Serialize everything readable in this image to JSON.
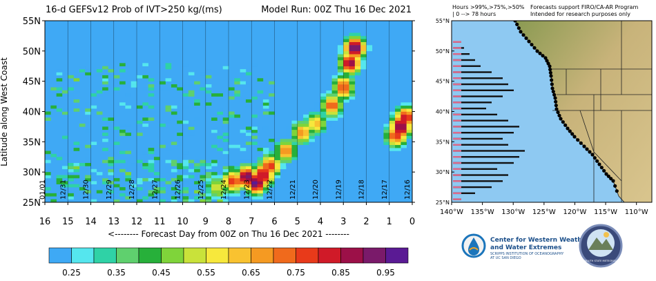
{
  "chart_data": [
    {
      "type": "heatmap",
      "title": "16-d GEFSv12 Prob of IVT>250 kg/(ms)",
      "model_run": "Model Run: 00Z Thu 16 Dec 2021",
      "xlabel": "<-------- Forecast Day from 00Z on Thu 16 Dec 2021 --------",
      "ylabel": "Latitude along West Coast",
      "xlim": [
        16,
        0
      ],
      "ylim": [
        25,
        55
      ],
      "x_ticks": [
        "16",
        "15",
        "14",
        "13",
        "12",
        "11",
        "10",
        "9",
        "8",
        "7",
        "6",
        "5",
        "4",
        "3",
        "2",
        "1",
        "0"
      ],
      "y_ticks": [
        "25N",
        "30N",
        "35N",
        "40N",
        "45N",
        "50N",
        "55N"
      ],
      "date_labels": [
        {
          "label": "01/01",
          "day": 15.9
        },
        {
          "label": "12/31",
          "day": 15.0
        },
        {
          "label": "12/30",
          "day": 14.0
        },
        {
          "label": "12/29",
          "day": 13.0
        },
        {
          "label": "12/28",
          "day": 12.0
        },
        {
          "label": "12/27",
          "day": 11.0
        },
        {
          "label": "12/26",
          "day": 10.0
        },
        {
          "label": "12/25",
          "day": 9.0
        },
        {
          "label": "12/24",
          "day": 8.0
        },
        {
          "label": "12/23",
          "day": 7.0
        },
        {
          "label": "12/22",
          "day": 6.0
        },
        {
          "label": "12/21",
          "day": 5.0
        },
        {
          "label": "12/20",
          "day": 4.0
        },
        {
          "label": "12/19",
          "day": 3.0
        },
        {
          "label": "12/18",
          "day": 2.0
        },
        {
          "label": "12/17",
          "day": 1.0
        },
        {
          "label": "12/16",
          "day": 0.0
        }
      ],
      "background_color": "#3fa9f5",
      "colorbar": {
        "tick_labels": [
          "0.25",
          "0.35",
          "0.45",
          "0.55",
          "0.65",
          "0.75",
          "0.85",
          "0.95"
        ],
        "colors": [
          "#3ea9f5",
          "#55e6ee",
          "#2fd2a6",
          "#5fd06e",
          "#27b03a",
          "#7fd43a",
          "#c9e23a",
          "#f7e83c",
          "#f9c230",
          "#f59a22",
          "#f06a1c",
          "#e83a1a",
          "#d01a28",
          "#9c1048",
          "#7a1a6a",
          "#5a1a94"
        ]
      },
      "features": [
        {
          "name": "main-ar",
          "points": [
            [
              8.5,
              27.5,
              0.55
            ],
            [
              7.8,
              28.5,
              0.8
            ],
            [
              7.2,
              29.2,
              0.95
            ],
            [
              6.8,
              28.2,
              0.97
            ],
            [
              6.5,
              29.5,
              0.9
            ],
            [
              6.2,
              31.0,
              0.8
            ],
            [
              5.5,
              33.5,
              0.72
            ],
            [
              4.8,
              36.5,
              0.7
            ],
            [
              4.2,
              38.0,
              0.65
            ],
            [
              3.5,
              41.0,
              0.75
            ],
            [
              3.0,
              44.0,
              0.8
            ],
            [
              2.7,
              48.0,
              0.9
            ],
            [
              2.5,
              50.5,
              0.97
            ]
          ]
        },
        {
          "name": "day0-ar",
          "points": [
            [
              0.7,
              36.0,
              0.8
            ],
            [
              0.5,
              37.5,
              0.95
            ],
            [
              0.3,
              39.0,
              0.85
            ]
          ]
        }
      ]
    },
    {
      "type": "map",
      "legend_line_1": "Hours >99%,>75%,>50%",
      "legend_line_2": "| 0 --> 78 hours",
      "note_line_1": "Forecasts support FIRO/CA-AR Program",
      "note_line_2": "Intended for research purposes only",
      "lon_ticks": [
        "140°W",
        "135°W",
        "130°W",
        "125°W",
        "120°W",
        "115°W",
        "110°W"
      ],
      "lat_ticks": [
        "25°N",
        "30°N",
        "35°N",
        "40°N",
        "45°N",
        "50°N",
        "55°N"
      ],
      "ocean_color": "#8ec9f2",
      "land_color": "#c9b27a",
      "hours_bars": [
        [
          25.5,
          3
        ],
        [
          26.5,
          8
        ],
        [
          27.5,
          14
        ],
        [
          28.5,
          18
        ],
        [
          29.5,
          20
        ],
        [
          30.5,
          16
        ],
        [
          31.5,
          22
        ],
        [
          32.5,
          24
        ],
        [
          33.5,
          26
        ],
        [
          34.5,
          20
        ],
        [
          35.5,
          18
        ],
        [
          36.5,
          22
        ],
        [
          37.5,
          24
        ],
        [
          38.5,
          20
        ],
        [
          39.5,
          16
        ],
        [
          40.5,
          12
        ],
        [
          41.5,
          14
        ],
        [
          42.5,
          18
        ],
        [
          43.5,
          22
        ],
        [
          44.5,
          20
        ],
        [
          45.5,
          18
        ],
        [
          46.5,
          14
        ],
        [
          47.5,
          10
        ],
        [
          48.5,
          8
        ],
        [
          49.5,
          6
        ],
        [
          50.5,
          4
        ],
        [
          51.5,
          3
        ]
      ]
    }
  ],
  "logos": {
    "cw3e_line_1": "Center for Western Weather",
    "cw3e_line_2": "and Water Extremes",
    "cw3e_line_3": "SCRIPPS INSTITUTION OF OCEANOGRAPHY",
    "cw3e_line_4": "AT UC SAN DIEGO",
    "psu_label": "PLYMOUTH STATE METEOROLOGY"
  }
}
